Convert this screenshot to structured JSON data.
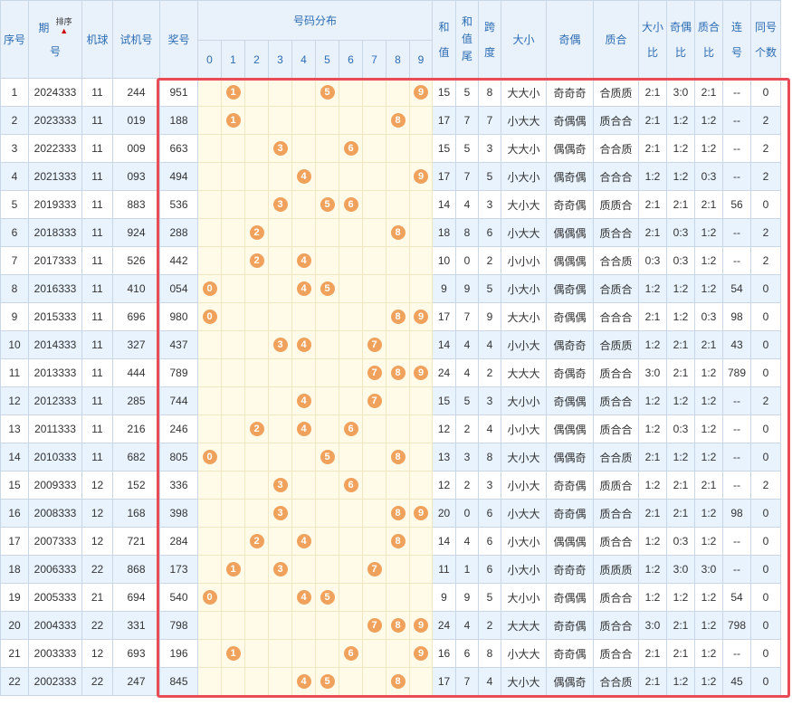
{
  "headers": {
    "index": "序号",
    "period_a": "期",
    "period_b": "号",
    "sort_label": "排序",
    "machine": "机球",
    "trial": "试机号",
    "prize": "奖号",
    "dist": "号码分布",
    "digits": [
      "0",
      "1",
      "2",
      "3",
      "4",
      "5",
      "6",
      "7",
      "8",
      "9"
    ],
    "sum_a": "和",
    "sum_b": "值",
    "sumtail_a": "和",
    "sumtail_b": "值",
    "sumtail_c": "尾",
    "span_a": "跨",
    "span_b": "度",
    "bigsmall": "大小",
    "oddeven": "奇偶",
    "primecomp": "质合",
    "bs_ratio_a": "大小",
    "bs_ratio_b": "比",
    "oe_ratio_a": "奇偶",
    "oe_ratio_b": "比",
    "pc_ratio_a": "质合",
    "pc_ratio_b": "比",
    "consec_a": "连",
    "consec_b": "号",
    "same_a": "同号",
    "same_b": "个数"
  },
  "rows": [
    {
      "idx": "1",
      "period": "2024333",
      "machine": "11",
      "trial": "244",
      "prize": "951",
      "sum": "15",
      "tail": "5",
      "span": "8",
      "bs": "大大小",
      "oe": "奇奇奇",
      "pc": "合质质",
      "bsr": "2:1",
      "oer": "3:0",
      "pcr": "2:1",
      "consec": "--",
      "same": "0"
    },
    {
      "idx": "2",
      "period": "2023333",
      "machine": "11",
      "trial": "019",
      "prize": "188",
      "sum": "17",
      "tail": "7",
      "span": "7",
      "bs": "小大大",
      "oe": "奇偶偶",
      "pc": "质合合",
      "bsr": "2:1",
      "oer": "1:2",
      "pcr": "1:2",
      "consec": "--",
      "same": "2"
    },
    {
      "idx": "3",
      "period": "2022333",
      "machine": "11",
      "trial": "009",
      "prize": "663",
      "sum": "15",
      "tail": "5",
      "span": "3",
      "bs": "大大小",
      "oe": "偶偶奇",
      "pc": "合合质",
      "bsr": "2:1",
      "oer": "1:2",
      "pcr": "1:2",
      "consec": "--",
      "same": "2"
    },
    {
      "idx": "4",
      "period": "2021333",
      "machine": "11",
      "trial": "093",
      "prize": "494",
      "sum": "17",
      "tail": "7",
      "span": "5",
      "bs": "小大小",
      "oe": "偶奇偶",
      "pc": "合合合",
      "bsr": "1:2",
      "oer": "1:2",
      "pcr": "0:3",
      "consec": "--",
      "same": "2"
    },
    {
      "idx": "5",
      "period": "2019333",
      "machine": "11",
      "trial": "883",
      "prize": "536",
      "sum": "14",
      "tail": "4",
      "span": "3",
      "bs": "大小大",
      "oe": "奇奇偶",
      "pc": "质质合",
      "bsr": "2:1",
      "oer": "2:1",
      "pcr": "2:1",
      "consec": "56",
      "same": "0"
    },
    {
      "idx": "6",
      "period": "2018333",
      "machine": "11",
      "trial": "924",
      "prize": "288",
      "sum": "18",
      "tail": "8",
      "span": "6",
      "bs": "小大大",
      "oe": "偶偶偶",
      "pc": "质合合",
      "bsr": "2:1",
      "oer": "0:3",
      "pcr": "1:2",
      "consec": "--",
      "same": "2"
    },
    {
      "idx": "7",
      "period": "2017333",
      "machine": "11",
      "trial": "526",
      "prize": "442",
      "sum": "10",
      "tail": "0",
      "span": "2",
      "bs": "小小小",
      "oe": "偶偶偶",
      "pc": "合合质",
      "bsr": "0:3",
      "oer": "0:3",
      "pcr": "1:2",
      "consec": "--",
      "same": "2"
    },
    {
      "idx": "8",
      "period": "2016333",
      "machine": "11",
      "trial": "410",
      "prize": "054",
      "sum": "9",
      "tail": "9",
      "span": "5",
      "bs": "小大小",
      "oe": "偶奇偶",
      "pc": "合质合",
      "bsr": "1:2",
      "oer": "1:2",
      "pcr": "1:2",
      "consec": "54",
      "same": "0"
    },
    {
      "idx": "9",
      "period": "2015333",
      "machine": "11",
      "trial": "696",
      "prize": "980",
      "sum": "17",
      "tail": "7",
      "span": "9",
      "bs": "大大小",
      "oe": "奇偶偶",
      "pc": "合合合",
      "bsr": "2:1",
      "oer": "1:2",
      "pcr": "0:3",
      "consec": "98",
      "same": "0"
    },
    {
      "idx": "10",
      "period": "2014333",
      "machine": "11",
      "trial": "327",
      "prize": "437",
      "sum": "14",
      "tail": "4",
      "span": "4",
      "bs": "小小大",
      "oe": "偶奇奇",
      "pc": "合质质",
      "bsr": "1:2",
      "oer": "2:1",
      "pcr": "2:1",
      "consec": "43",
      "same": "0"
    },
    {
      "idx": "11",
      "period": "2013333",
      "machine": "11",
      "trial": "444",
      "prize": "789",
      "sum": "24",
      "tail": "4",
      "span": "2",
      "bs": "大大大",
      "oe": "奇偶奇",
      "pc": "质合合",
      "bsr": "3:0",
      "oer": "2:1",
      "pcr": "1:2",
      "consec": "789",
      "same": "0"
    },
    {
      "idx": "12",
      "period": "2012333",
      "machine": "11",
      "trial": "285",
      "prize": "744",
      "sum": "15",
      "tail": "5",
      "span": "3",
      "bs": "大小小",
      "oe": "奇偶偶",
      "pc": "质合合",
      "bsr": "1:2",
      "oer": "1:2",
      "pcr": "1:2",
      "consec": "--",
      "same": "2"
    },
    {
      "idx": "13",
      "period": "2011333",
      "machine": "11",
      "trial": "216",
      "prize": "246",
      "sum": "12",
      "tail": "2",
      "span": "4",
      "bs": "小小大",
      "oe": "偶偶偶",
      "pc": "质合合",
      "bsr": "1:2",
      "oer": "0:3",
      "pcr": "1:2",
      "consec": "--",
      "same": "0"
    },
    {
      "idx": "14",
      "period": "2010333",
      "machine": "11",
      "trial": "682",
      "prize": "805",
      "sum": "13",
      "tail": "3",
      "span": "8",
      "bs": "大小大",
      "oe": "偶偶奇",
      "pc": "合合质",
      "bsr": "2:1",
      "oer": "1:2",
      "pcr": "1:2",
      "consec": "--",
      "same": "0"
    },
    {
      "idx": "15",
      "period": "2009333",
      "machine": "12",
      "trial": "152",
      "prize": "336",
      "sum": "12",
      "tail": "2",
      "span": "3",
      "bs": "小小大",
      "oe": "奇奇偶",
      "pc": "质质合",
      "bsr": "1:2",
      "oer": "2:1",
      "pcr": "2:1",
      "consec": "--",
      "same": "2"
    },
    {
      "idx": "16",
      "period": "2008333",
      "machine": "12",
      "trial": "168",
      "prize": "398",
      "sum": "20",
      "tail": "0",
      "span": "6",
      "bs": "小大大",
      "oe": "奇奇偶",
      "pc": "质合合",
      "bsr": "2:1",
      "oer": "2:1",
      "pcr": "1:2",
      "consec": "98",
      "same": "0"
    },
    {
      "idx": "17",
      "period": "2007333",
      "machine": "12",
      "trial": "721",
      "prize": "284",
      "sum": "14",
      "tail": "4",
      "span": "6",
      "bs": "小大小",
      "oe": "偶偶偶",
      "pc": "质合合",
      "bsr": "1:2",
      "oer": "0:3",
      "pcr": "1:2",
      "consec": "--",
      "same": "0"
    },
    {
      "idx": "18",
      "period": "2006333",
      "machine": "22",
      "trial": "868",
      "prize": "173",
      "sum": "11",
      "tail": "1",
      "span": "6",
      "bs": "小大小",
      "oe": "奇奇奇",
      "pc": "质质质",
      "bsr": "1:2",
      "oer": "3:0",
      "pcr": "3:0",
      "consec": "--",
      "same": "0"
    },
    {
      "idx": "19",
      "period": "2005333",
      "machine": "21",
      "trial": "694",
      "prize": "540",
      "sum": "9",
      "tail": "9",
      "span": "5",
      "bs": "大小小",
      "oe": "奇偶偶",
      "pc": "质合合",
      "bsr": "1:2",
      "oer": "1:2",
      "pcr": "1:2",
      "consec": "54",
      "same": "0"
    },
    {
      "idx": "20",
      "period": "2004333",
      "machine": "22",
      "trial": "331",
      "prize": "798",
      "sum": "24",
      "tail": "4",
      "span": "2",
      "bs": "大大大",
      "oe": "奇奇偶",
      "pc": "质合合",
      "bsr": "3:0",
      "oer": "2:1",
      "pcr": "1:2",
      "consec": "798",
      "same": "0"
    },
    {
      "idx": "21",
      "period": "2003333",
      "machine": "12",
      "trial": "693",
      "prize": "196",
      "sum": "16",
      "tail": "6",
      "span": "8",
      "bs": "小大大",
      "oe": "奇奇偶",
      "pc": "质合合",
      "bsr": "2:1",
      "oer": "2:1",
      "pcr": "1:2",
      "consec": "--",
      "same": "0"
    },
    {
      "idx": "22",
      "period": "2002333",
      "machine": "22",
      "trial": "247",
      "prize": "845",
      "sum": "17",
      "tail": "7",
      "span": "4",
      "bs": "大小大",
      "oe": "偶偶奇",
      "pc": "合合质",
      "bsr": "2:1",
      "oer": "1:2",
      "pcr": "1:2",
      "consec": "45",
      "same": "0"
    }
  ],
  "colors": {
    "ball": "#f0a25c",
    "highlight_border": "#e94b57",
    "header_text": "#2c6db3",
    "row_alt": "#e8f3fd",
    "dist_bg": "#fffbe8"
  }
}
